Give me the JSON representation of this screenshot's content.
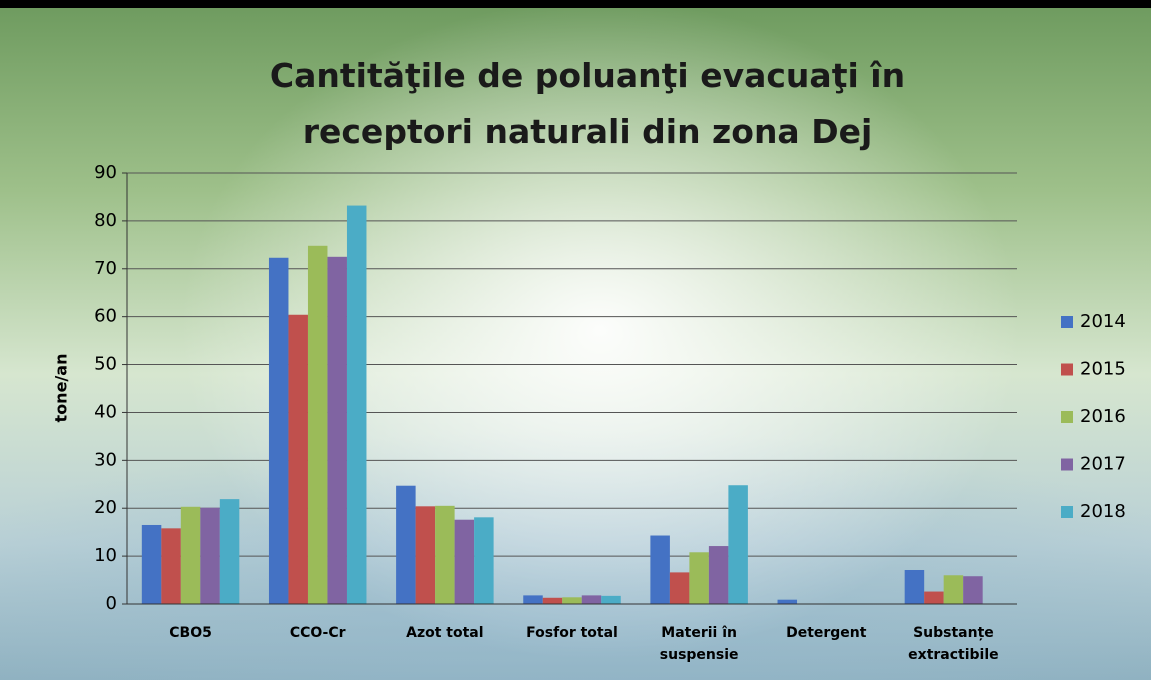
{
  "chart_data": {
    "type": "bar",
    "title": "Cantităţile de poluanţi evacuaţi în receptori naturali din zona Dej",
    "y_label": "tone/an",
    "categories": [
      "CBO5",
      "CCO-Cr",
      "Azot total",
      "Fosfor total",
      "Materii în suspensie",
      "Detergent",
      "Substanțe extractibile"
    ],
    "series": [
      {
        "name": "2014",
        "color": "#4472c4",
        "values": [
          16.5,
          72.3,
          24.7,
          1.8,
          14.3,
          0.9,
          7.1
        ]
      },
      {
        "name": "2015",
        "color": "#c0504d",
        "values": [
          15.8,
          60.4,
          20.4,
          1.3,
          6.6,
          0,
          2.6
        ]
      },
      {
        "name": "2016",
        "color": "#9bbb59",
        "values": [
          20.3,
          74.8,
          20.5,
          1.4,
          10.8,
          0,
          6.0
        ]
      },
      {
        "name": "2017",
        "color": "#8064a2",
        "values": [
          20.1,
          72.5,
          17.6,
          1.8,
          12.1,
          0,
          5.8
        ]
      },
      {
        "name": "2018",
        "color": "#4bacc6",
        "values": [
          21.9,
          83.2,
          18.1,
          1.7,
          24.8,
          0,
          0
        ]
      }
    ],
    "ylim": [
      0,
      90
    ],
    "yticks": [
      0,
      10,
      20,
      30,
      40,
      50,
      60,
      70,
      80,
      90
    ],
    "grid": true,
    "legend": "right"
  }
}
